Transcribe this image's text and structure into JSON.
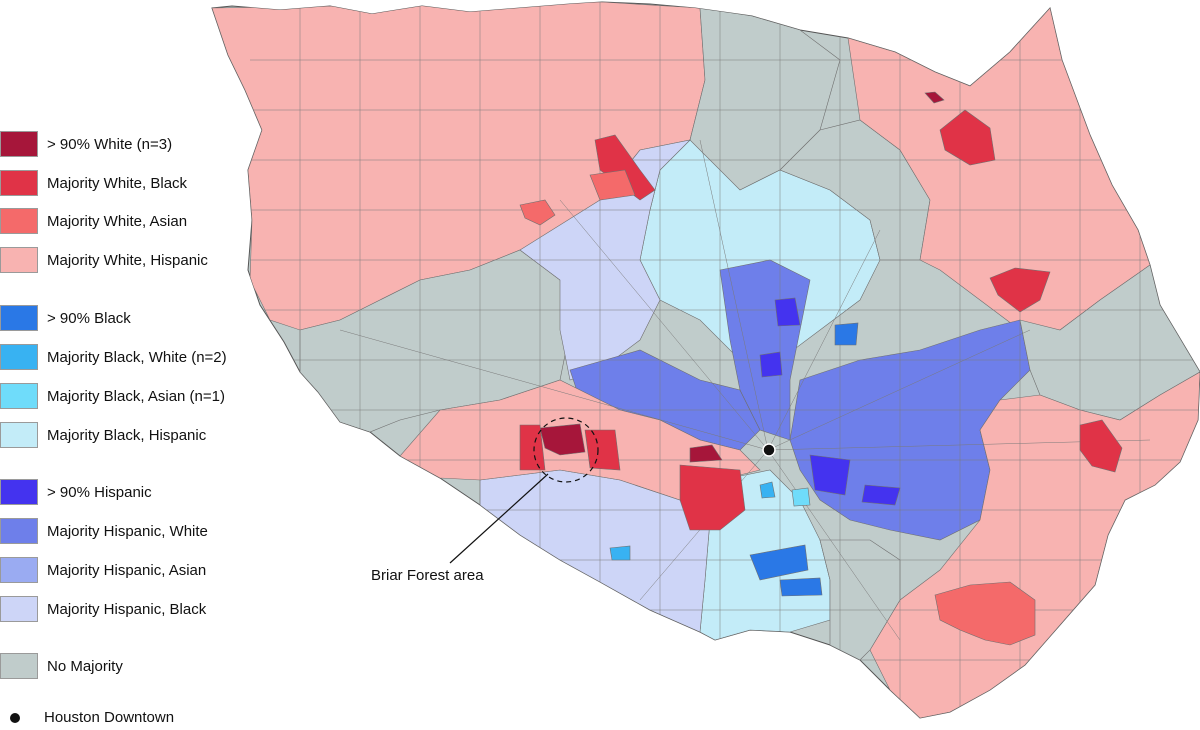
{
  "legend": {
    "items": [
      {
        "label": "> 90% White (n=3)",
        "color": "#a6163a"
      },
      {
        "label": "Majority White, Black",
        "color": "#e03347"
      },
      {
        "label": "Majority White, Asian",
        "color": "#f46a6a"
      },
      {
        "label": "Majority White, Hispanic",
        "color": "#f8b3b1"
      },
      {
        "label": "> 90% Black",
        "color": "#2a78e6"
      },
      {
        "label": "Majority Black, White (n=2)",
        "color": "#38b2f2"
      },
      {
        "label": "Majority Black, Asian (n=1)",
        "color": "#6fdcfa"
      },
      {
        "label": "Majority Black, Hispanic",
        "color": "#c3ecf8"
      },
      {
        "label": "> 90% Hispanic",
        "color": "#4433ef"
      },
      {
        "label": "Majority Hispanic, White",
        "color": "#6e7fea"
      },
      {
        "label": "Majority Hispanic, Asian",
        "color": "#9aabf2"
      },
      {
        "label": "Majority Hispanic, Black",
        "color": "#cdd5f7"
      },
      {
        "label": "No Majority",
        "color": "#c0cccb"
      }
    ],
    "downtown_label": "Houston Downtown"
  },
  "annotation": {
    "label": "Briar Forest area"
  }
}
